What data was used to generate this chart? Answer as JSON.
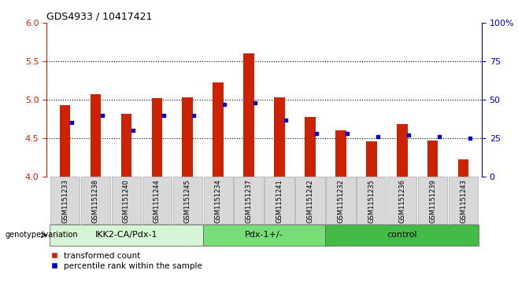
{
  "title": "GDS4933 / 10417421",
  "samples": [
    "GSM1151233",
    "GSM1151238",
    "GSM1151240",
    "GSM1151244",
    "GSM1151245",
    "GSM1151234",
    "GSM1151237",
    "GSM1151241",
    "GSM1151242",
    "GSM1151232",
    "GSM1151235",
    "GSM1151236",
    "GSM1151239",
    "GSM1151243"
  ],
  "red_values": [
    4.93,
    5.07,
    4.82,
    5.02,
    5.03,
    5.22,
    5.6,
    5.03,
    4.78,
    4.6,
    4.46,
    4.68,
    4.47,
    4.22
  ],
  "blue_values": [
    35,
    40,
    30,
    40,
    40,
    47,
    48,
    37,
    28,
    28,
    26,
    27,
    26,
    25
  ],
  "groups": [
    {
      "label": "IKK2-CA/Pdx-1",
      "start": 0,
      "end": 5,
      "color": "#d6f5d6"
    },
    {
      "label": "Pdx-1+/-",
      "start": 5,
      "end": 9,
      "color": "#77dd77"
    },
    {
      "label": "control",
      "start": 9,
      "end": 14,
      "color": "#44bb44"
    }
  ],
  "ylim_left": [
    4.0,
    6.0
  ],
  "ylim_right": [
    0,
    100
  ],
  "yticks_left": [
    4.0,
    4.5,
    5.0,
    5.5,
    6.0
  ],
  "yticks_right": [
    0,
    25,
    50,
    75,
    100
  ],
  "hlines": [
    4.5,
    5.0,
    5.5
  ],
  "red_color": "#cc2200",
  "blue_color": "#0000cc",
  "bar_width": 0.35,
  "left_axis_color": "#cc2200",
  "right_axis_color": "#0000cc",
  "xtick_bg": "#d8d8d8",
  "xtick_edge": "#aaaaaa"
}
